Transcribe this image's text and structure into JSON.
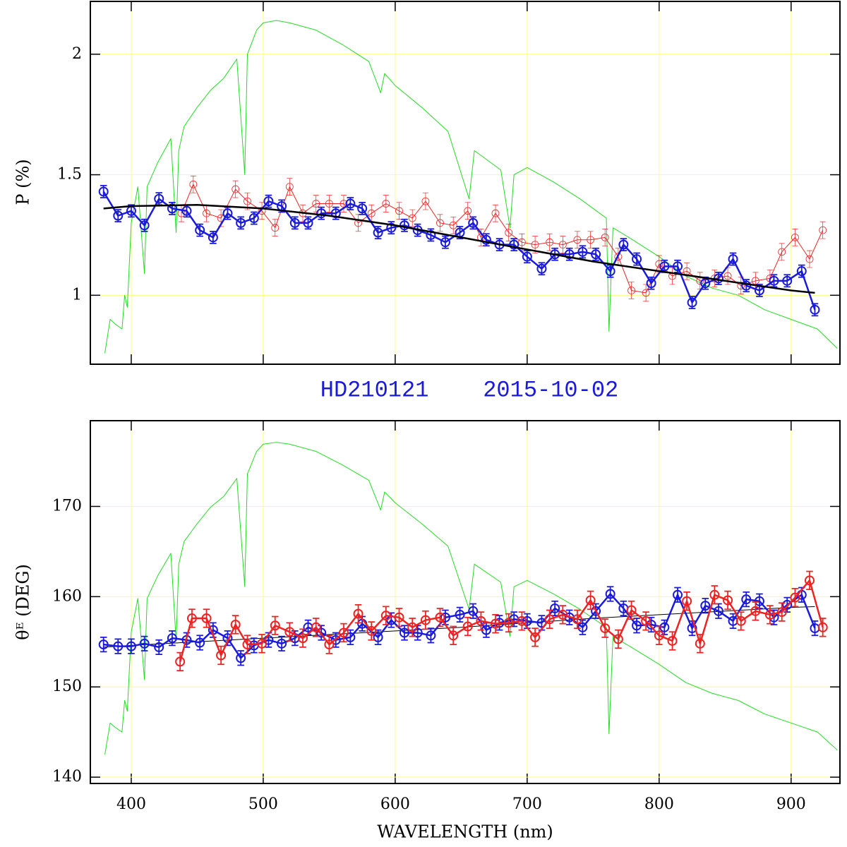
{
  "chart_data": [
    {
      "type": "line",
      "title": "HD210121    2015-10-02",
      "ylabel": "P (%)",
      "xlim": [
        369,
        937
      ],
      "ylim": [
        0.714,
        2.219
      ],
      "xticks": [
        400,
        500,
        600,
        700,
        800,
        900
      ],
      "yticks": [
        1,
        1.5,
        2
      ],
      "xtick_labels": false,
      "grid": true,
      "grid_color": "#ffff80",
      "series": [
        {
          "color": "#22dd22",
          "line_width": 1,
          "marker": "none",
          "x": [
            380,
            384,
            388,
            393,
            395,
            397,
            400,
            405,
            410,
            412,
            420,
            430,
            434,
            436,
            440,
            450,
            460,
            470,
            480,
            486,
            488,
            495,
            500,
            510,
            520,
            540,
            560,
            580,
            589,
            592,
            600,
            620,
            640,
            656,
            660,
            680,
            687,
            690,
            700,
            720,
            740,
            760,
            762,
            765,
            780,
            800,
            820,
            840,
            860,
            880,
            900,
            920,
            935
          ],
          "values": [
            0.76,
            0.9,
            0.88,
            0.86,
            1.0,
            0.95,
            1.3,
            1.45,
            1.09,
            1.45,
            1.55,
            1.65,
            1.26,
            1.6,
            1.7,
            1.78,
            1.85,
            1.9,
            1.98,
            1.5,
            2.0,
            2.1,
            2.13,
            2.14,
            2.13,
            2.1,
            2.04,
            1.97,
            1.84,
            1.92,
            1.87,
            1.78,
            1.68,
            1.4,
            1.6,
            1.52,
            1.28,
            1.5,
            1.53,
            1.47,
            1.4,
            1.32,
            0.85,
            1.28,
            1.23,
            1.16,
            1.08,
            1.03,
            1.0,
            0.94,
            0.9,
            0.86,
            0.78
          ]
        },
        {
          "color": "#ee2222",
          "line_width": 1,
          "marker": "circle",
          "marker_size": 5,
          "error": 0.035,
          "x": [
            438,
            447,
            457,
            468,
            479,
            488,
            499,
            509,
            520,
            530,
            540,
            550,
            561,
            572,
            582,
            593,
            603,
            613,
            623,
            634,
            644,
            655,
            665,
            676,
            686,
            696,
            706,
            717,
            727,
            738,
            748,
            759,
            769,
            779,
            790,
            800,
            810,
            821,
            831,
            842,
            852,
            862,
            873,
            884,
            893,
            903,
            914,
            924
          ],
          "values": [
            1.34,
            1.46,
            1.34,
            1.32,
            1.44,
            1.39,
            1.35,
            1.28,
            1.45,
            1.34,
            1.38,
            1.38,
            1.38,
            1.3,
            1.34,
            1.38,
            1.35,
            1.32,
            1.39,
            1.3,
            1.29,
            1.35,
            1.24,
            1.34,
            1.26,
            1.22,
            1.21,
            1.22,
            1.21,
            1.23,
            1.23,
            1.24,
            1.16,
            1.02,
            1.01,
            1.13,
            1.08,
            1.1,
            1.06,
            1.07,
            1.08,
            1.04,
            1.06,
            1.07,
            1.18,
            1.24,
            1.15,
            1.27
          ]
        },
        {
          "color": "#1a1add",
          "line_width": 2.5,
          "marker": "circle",
          "marker_size": 6,
          "error": 0.025,
          "x": [
            379,
            390,
            400,
            410,
            421,
            431,
            442,
            452,
            462,
            473,
            483,
            493,
            504,
            514,
            524,
            534,
            544,
            555,
            566,
            575,
            587,
            597,
            607,
            617,
            627,
            638,
            649,
            659,
            669,
            679,
            690,
            700,
            711,
            721,
            732,
            742,
            752,
            763,
            773,
            783,
            794,
            804,
            814,
            825,
            835,
            845,
            856,
            866,
            876,
            887,
            897,
            908,
            918
          ],
          "values": [
            1.43,
            1.33,
            1.35,
            1.29,
            1.4,
            1.36,
            1.35,
            1.27,
            1.24,
            1.34,
            1.3,
            1.32,
            1.39,
            1.37,
            1.3,
            1.3,
            1.34,
            1.34,
            1.38,
            1.36,
            1.26,
            1.28,
            1.29,
            1.27,
            1.25,
            1.22,
            1.26,
            1.3,
            1.23,
            1.21,
            1.21,
            1.16,
            1.11,
            1.17,
            1.17,
            1.18,
            1.17,
            1.1,
            1.21,
            1.15,
            1.05,
            1.12,
            1.12,
            0.97,
            1.05,
            1.07,
            1.15,
            1.04,
            1.02,
            1.06,
            1.06,
            1.1,
            0.94
          ]
        },
        {
          "color": "#000000",
          "line_width": 2.5,
          "marker": "none",
          "x": [
            379,
            400,
            450,
            500,
            550,
            600,
            650,
            700,
            750,
            800,
            850,
            900,
            918
          ],
          "values": [
            1.36,
            1.37,
            1.375,
            1.36,
            1.33,
            1.29,
            1.24,
            1.19,
            1.14,
            1.1,
            1.06,
            1.02,
            1.01
          ]
        }
      ]
    },
    {
      "type": "line",
      "ylabel": "θᴱ (DEG)",
      "xlabel": "WAVELENGTH (nm)",
      "xlim": [
        369,
        937
      ],
      "ylim": [
        139.3,
        179.5
      ],
      "xticks": [
        400,
        500,
        600,
        700,
        800,
        900
      ],
      "yticks": [
        140,
        150,
        160,
        170
      ],
      "xtick_labels": true,
      "grid": true,
      "grid_color": "#ffff80",
      "series": [
        {
          "color": "#22dd22",
          "line_width": 1,
          "marker": "none",
          "x": [
            380,
            384,
            388,
            393,
            395,
            397,
            400,
            405,
            410,
            412,
            420,
            430,
            434,
            436,
            440,
            450,
            460,
            470,
            480,
            486,
            488,
            495,
            500,
            510,
            520,
            540,
            560,
            580,
            589,
            592,
            600,
            620,
            640,
            656,
            660,
            680,
            687,
            690,
            700,
            720,
            740,
            760,
            762,
            765,
            780,
            800,
            820,
            840,
            860,
            880,
            900,
            920,
            935
          ],
          "values": [
            142.5,
            146.0,
            145.5,
            145.0,
            148.5,
            147.3,
            156.1,
            159.8,
            150.8,
            159.8,
            162.3,
            164.8,
            155.1,
            163.6,
            166.1,
            168.1,
            169.9,
            171.1,
            173.1,
            161.1,
            173.6,
            176.1,
            176.9,
            177.1,
            176.9,
            176.1,
            174.6,
            172.9,
            169.6,
            171.6,
            170.4,
            168.1,
            165.6,
            158.6,
            163.6,
            161.6,
            155.6,
            161.1,
            161.8,
            160.3,
            158.6,
            156.6,
            144.8,
            155.6,
            154.3,
            152.5,
            150.5,
            149.3,
            148.5,
            147.0,
            146.0,
            145.0,
            143.0
          ]
        },
        {
          "color": "#000000",
          "line_width": 1,
          "marker": "none",
          "x": [
            379,
            400,
            450,
            500,
            550,
            600,
            650,
            700,
            750,
            800,
            850,
            900,
            918
          ],
          "values": [
            154.4,
            154.6,
            155.0,
            155.4,
            155.8,
            156.2,
            156.6,
            157.1,
            157.6,
            158.0,
            158.4,
            158.8,
            158.9
          ]
        },
        {
          "color": "#1a1add",
          "line_width": 2.5,
          "marker": "circle",
          "marker_size": 6,
          "error": 0.8,
          "x": [
            379,
            390,
            400,
            410,
            421,
            431,
            442,
            452,
            462,
            473,
            483,
            493,
            504,
            514,
            524,
            534,
            544,
            555,
            566,
            575,
            587,
            597,
            607,
            617,
            627,
            638,
            649,
            659,
            669,
            679,
            690,
            700,
            711,
            721,
            732,
            742,
            752,
            763,
            773,
            783,
            794,
            804,
            814,
            825,
            835,
            845,
            856,
            866,
            876,
            887,
            897,
            908,
            918
          ],
          "values": [
            154.7,
            154.5,
            154.5,
            154.8,
            154.4,
            155.4,
            155.2,
            154.9,
            156.3,
            155.4,
            153.2,
            154.6,
            155.2,
            154.8,
            155.4,
            156.6,
            156.0,
            155.2,
            155.5,
            157.0,
            155.5,
            157.4,
            156.0,
            156.0,
            155.7,
            157.7,
            158.0,
            158.4,
            156.3,
            157.1,
            157.5,
            157.3,
            157.1,
            158.7,
            157.7,
            156.6,
            158.4,
            160.3,
            158.7,
            156.8,
            156.9,
            156.6,
            160.2,
            156.5,
            159.0,
            158.4,
            157.3,
            159.7,
            159.5,
            157.7,
            159.1,
            160.2,
            156.5
          ]
        },
        {
          "color": "#ee2222",
          "line_width": 2.5,
          "marker": "circle",
          "marker_size": 6,
          "error": 1.0,
          "x": [
            437,
            446,
            457,
            468,
            479,
            488,
            499,
            509,
            520,
            530,
            540,
            550,
            561,
            572,
            582,
            593,
            603,
            613,
            623,
            634,
            644,
            655,
            665,
            676,
            686,
            696,
            706,
            717,
            727,
            738,
            748,
            759,
            769,
            779,
            790,
            800,
            810,
            821,
            831,
            842,
            852,
            862,
            873,
            884,
            893,
            903,
            914,
            924
          ],
          "values": [
            152.8,
            157.6,
            157.6,
            153.5,
            156.9,
            154.7,
            154.8,
            156.8,
            156.1,
            155.4,
            156.6,
            154.7,
            156.0,
            158.1,
            156.2,
            157.9,
            157.7,
            156.6,
            157.4,
            157.7,
            155.7,
            156.7,
            157.3,
            157.0,
            157.1,
            157.3,
            155.5,
            157.5,
            158.0,
            157.5,
            159.6,
            156.5,
            155.3,
            158.5,
            157.3,
            155.7,
            155.1,
            159.5,
            154.8,
            160.2,
            159.6,
            157.3,
            158.4,
            158.0,
            158.3,
            159.9,
            161.8,
            156.6
          ]
        }
      ]
    }
  ]
}
